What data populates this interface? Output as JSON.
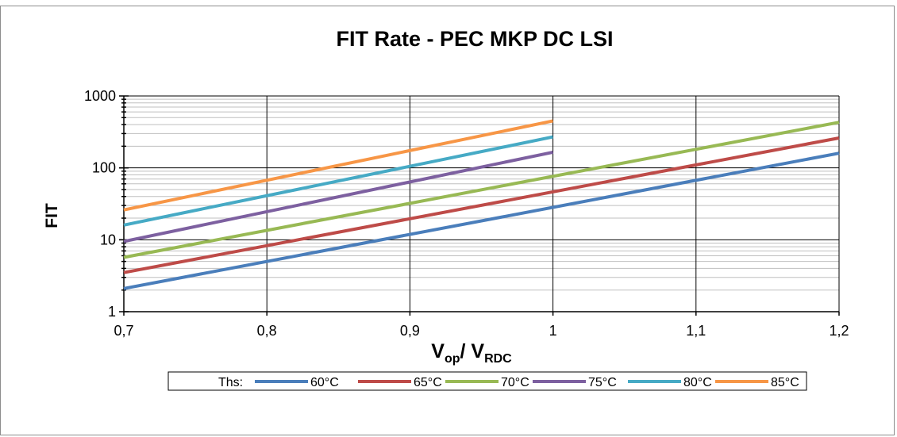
{
  "chart_data": {
    "type": "line",
    "title": "FIT Rate - PEC MKP DC LSI",
    "ylabel": "FIT",
    "xlabel": {
      "main1": "V",
      "sub1": "op",
      "main2": "/ V",
      "sub2": "RDC"
    },
    "xlim": [
      0.7,
      1.2
    ],
    "ylim": [
      1,
      1000
    ],
    "yscale": "log",
    "grid": "on",
    "x_ticks": [
      0.7,
      0.8,
      0.9,
      1.0,
      1.1,
      1.2
    ],
    "x_tick_labels": [
      "0,7",
      "0,8",
      "0,9",
      "1",
      "1,1",
      "1,2"
    ],
    "y_ticks": [
      1,
      10,
      100,
      1000
    ],
    "y_tick_labels": [
      "1",
      "10",
      "100",
      "1000"
    ],
    "legend": {
      "position": "bottom",
      "prefix": "Ths:"
    },
    "series": [
      {
        "name": "60°C",
        "color": "#4a7ebb",
        "x": [
          0.7,
          1.2
        ],
        "y": [
          2.1,
          160
        ]
      },
      {
        "name": "65°C",
        "color": "#be4b48",
        "x": [
          0.7,
          1.2
        ],
        "y": [
          3.5,
          260
        ]
      },
      {
        "name": "70°C",
        "color": "#98b954",
        "x": [
          0.7,
          1.2
        ],
        "y": [
          5.7,
          430
        ]
      },
      {
        "name": "75°C",
        "color": "#7d60a0",
        "x": [
          0.7,
          1.0
        ],
        "y": [
          9.5,
          165
        ]
      },
      {
        "name": "80°C",
        "color": "#46aac5",
        "x": [
          0.7,
          1.0
        ],
        "y": [
          16,
          270
        ]
      },
      {
        "name": "85°C",
        "color": "#f79646",
        "x": [
          0.7,
          1.0
        ],
        "y": [
          26,
          450
        ]
      }
    ]
  }
}
